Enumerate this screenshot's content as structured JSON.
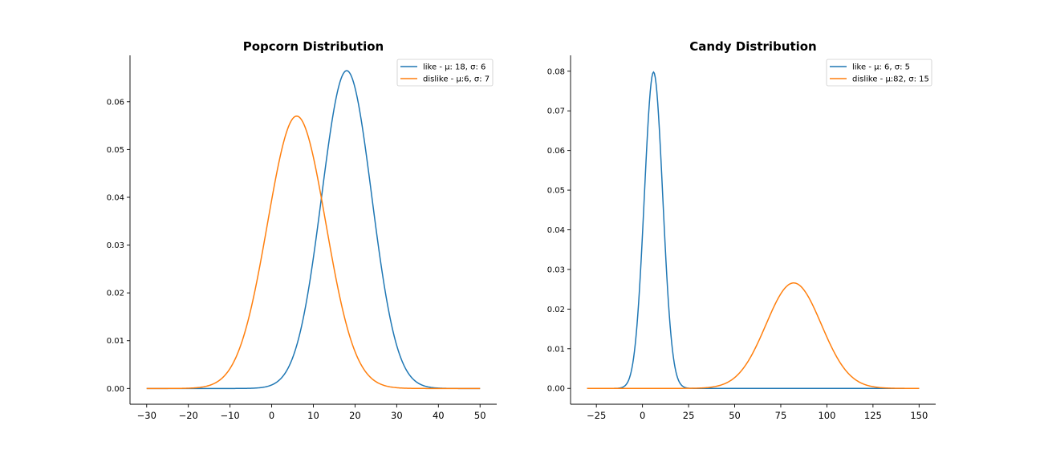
{
  "chart_data": [
    {
      "type": "line",
      "title": "Popcorn Distribution",
      "xlabel": "",
      "ylabel": "",
      "xlim": [
        -34,
        54
      ],
      "ylim": [
        -0.0033,
        0.0697
      ],
      "xticks": [
        -30,
        -20,
        -10,
        0,
        10,
        20,
        30,
        40,
        50
      ],
      "xtick_labels": [
        "−30",
        "−20",
        "−10",
        "0",
        "10",
        "20",
        "30",
        "40",
        "50"
      ],
      "yticks": [
        0.0,
        0.01,
        0.02,
        0.03,
        0.04,
        0.05,
        0.06
      ],
      "ytick_labels": [
        "0.00",
        "0.01",
        "0.02",
        "0.03",
        "0.04",
        "0.05",
        "0.06"
      ],
      "x_range": [
        -30,
        50
      ],
      "grid": false,
      "legend_position": "top-right",
      "series": [
        {
          "name": "like - μ: 18, σ: 6",
          "distribution": "normal",
          "mu": 18,
          "sigma": 6,
          "color": "#1f77b4"
        },
        {
          "name": "dislike - μ:6, σ: 7",
          "distribution": "normal",
          "mu": 6,
          "sigma": 7,
          "color": "#ff7f0e"
        }
      ]
    },
    {
      "type": "line",
      "title": "Candy Distribution",
      "xlabel": "",
      "ylabel": "",
      "xlim": [
        -39,
        159
      ],
      "ylim": [
        -0.004,
        0.084
      ],
      "xticks": [
        -25,
        0,
        25,
        50,
        75,
        100,
        125,
        150
      ],
      "xtick_labels": [
        "−25",
        "0",
        "25",
        "50",
        "75",
        "100",
        "125",
        "150"
      ],
      "yticks": [
        0.0,
        0.01,
        0.02,
        0.03,
        0.04,
        0.05,
        0.06,
        0.07,
        0.08
      ],
      "ytick_labels": [
        "0.00",
        "0.01",
        "0.02",
        "0.03",
        "0.04",
        "0.05",
        "0.06",
        "0.07",
        "0.08"
      ],
      "x_range": [
        -30,
        150
      ],
      "grid": false,
      "legend_position": "top-right",
      "series": [
        {
          "name": "like - μ: 6, σ: 5",
          "distribution": "normal",
          "mu": 6,
          "sigma": 5,
          "color": "#1f77b4"
        },
        {
          "name": "dislike - μ:82, σ: 15",
          "distribution": "normal",
          "mu": 82,
          "sigma": 15,
          "color": "#ff7f0e"
        }
      ]
    }
  ]
}
